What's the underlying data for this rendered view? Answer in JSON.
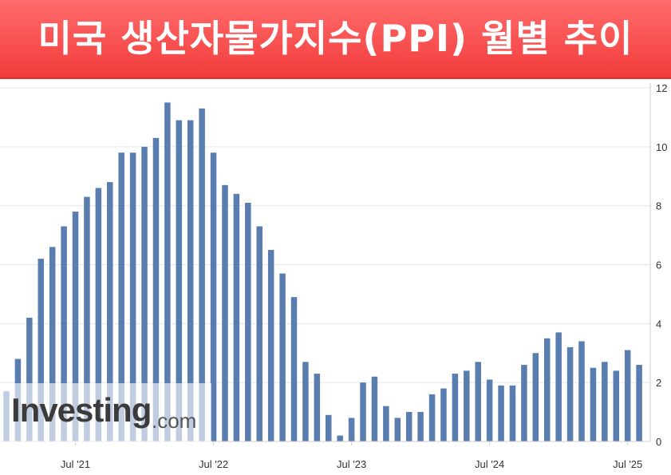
{
  "title": "미국 생산자물가지수(PPI) 월별 추이",
  "watermark": {
    "main": "Investing",
    "suffix": ".com"
  },
  "colors": {
    "bar": "#5a7db0",
    "banner": "#f04a4a",
    "grid": "#e6e6e6"
  },
  "chart_data": {
    "type": "bar",
    "x": [
      "2021-01",
      "2021-02",
      "2021-03",
      "2021-04",
      "2021-05",
      "2021-06",
      "2021-07",
      "2021-08",
      "2021-09",
      "2021-10",
      "2021-11",
      "2021-12",
      "2022-01",
      "2022-02",
      "2022-03",
      "2022-04",
      "2022-05",
      "2022-06",
      "2022-07",
      "2022-08",
      "2022-09",
      "2022-10",
      "2022-11",
      "2022-12",
      "2023-01",
      "2023-02",
      "2023-03",
      "2023-04",
      "2023-05",
      "2023-06",
      "2023-07",
      "2023-08",
      "2023-09",
      "2023-10",
      "2023-11",
      "2023-12",
      "2024-01",
      "2024-02",
      "2024-03",
      "2024-04",
      "2024-05",
      "2024-06",
      "2024-07",
      "2024-08",
      "2024-09",
      "2024-10",
      "2024-11",
      "2024-12",
      "2025-01",
      "2025-02",
      "2025-03",
      "2025-04",
      "2025-05",
      "2025-06",
      "2025-07",
      "2025-08"
    ],
    "values": [
      1.7,
      2.8,
      4.2,
      6.2,
      6.6,
      7.3,
      7.8,
      8.3,
      8.6,
      8.8,
      9.8,
      9.8,
      10.0,
      10.3,
      11.5,
      10.9,
      10.9,
      11.3,
      9.8,
      8.7,
      8.4,
      8.1,
      7.3,
      6.5,
      5.7,
      4.9,
      2.7,
      2.3,
      0.9,
      0.2,
      0.8,
      2.0,
      2.2,
      1.2,
      0.8,
      1.0,
      1.0,
      1.6,
      1.8,
      2.3,
      2.4,
      2.7,
      2.1,
      1.9,
      1.9,
      2.6,
      3.0,
      3.5,
      3.7,
      3.2,
      3.4,
      2.5,
      2.7,
      2.4,
      3.1,
      2.6
    ],
    "xtick_labels": [
      {
        "x": "2021-07",
        "label": "Jul '21"
      },
      {
        "x": "2022-07",
        "label": "Jul '22"
      },
      {
        "x": "2023-07",
        "label": "Jul '23"
      },
      {
        "x": "2024-07",
        "label": "Jul '24"
      },
      {
        "x": "2025-07",
        "label": "Jul '25"
      }
    ],
    "yticks": [
      0,
      2,
      4,
      6,
      8,
      10,
      12
    ],
    "ylim": [
      0,
      12
    ],
    "y_axis_side": "right",
    "grid": true
  }
}
